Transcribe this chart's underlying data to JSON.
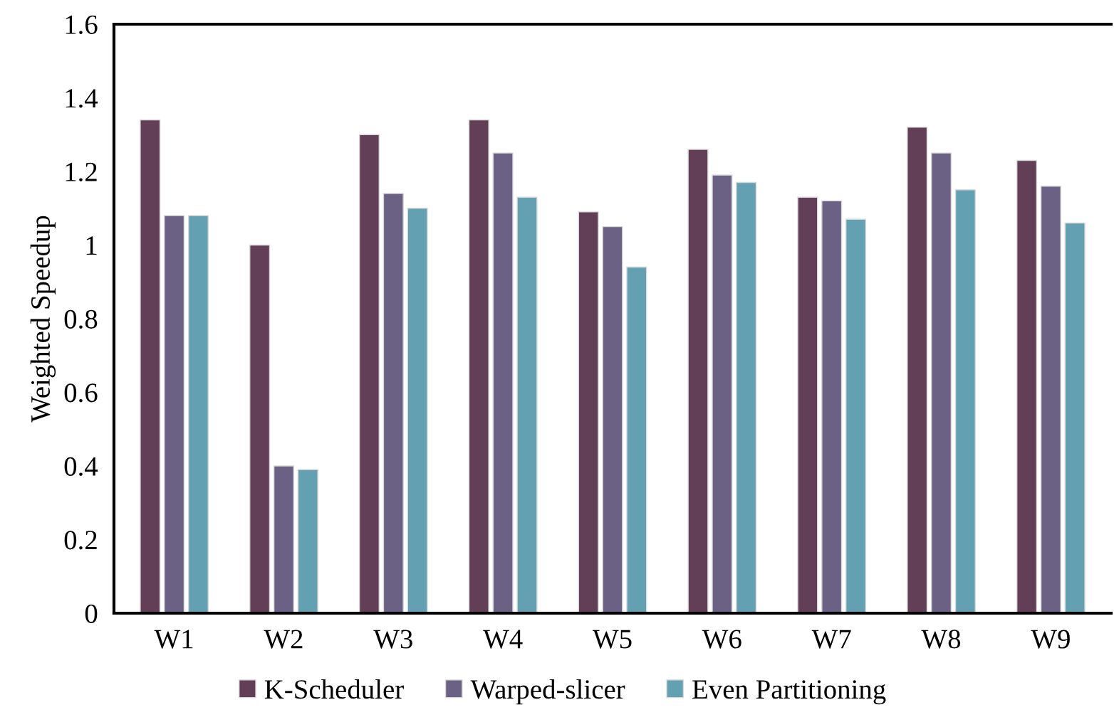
{
  "chart_data": {
    "type": "bar",
    "ylabel": "Weighted Speedup",
    "categories": [
      "W1",
      "W2",
      "W3",
      "W4",
      "W5",
      "W6",
      "W7",
      "W8",
      "W9"
    ],
    "series": [
      {
        "name": "K-Scheduler",
        "color": "#623f57",
        "values": [
          1.34,
          1.0,
          1.3,
          1.34,
          1.09,
          1.26,
          1.13,
          1.32,
          1.23
        ]
      },
      {
        "name": "Warped-slicer",
        "color": "#6b6185",
        "values": [
          1.08,
          0.4,
          1.14,
          1.25,
          1.05,
          1.19,
          1.12,
          1.25,
          1.16
        ]
      },
      {
        "name": "Even Partitioning",
        "color": "#62a0b2",
        "values": [
          1.08,
          0.39,
          1.1,
          1.13,
          0.94,
          1.17,
          1.07,
          1.15,
          1.06
        ]
      }
    ],
    "ylim": [
      0,
      1.6
    ],
    "yticks": [
      0,
      0.2,
      0.4,
      0.6,
      0.8,
      1,
      1.2,
      1.4,
      1.6
    ],
    "grid": false,
    "legend": "bottom"
  }
}
